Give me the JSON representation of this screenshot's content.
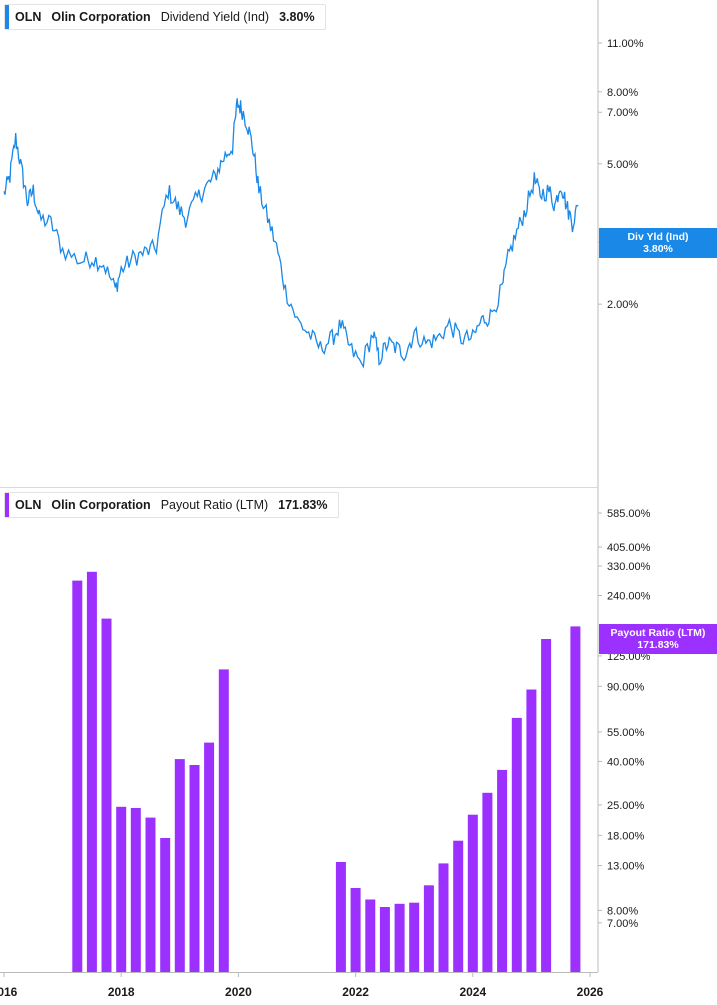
{
  "dividend_panel": {
    "legend": {
      "ticker": "OLN",
      "company": "Olin Corporation",
      "metric": "Dividend Yield (Ind)",
      "value": "3.80%"
    },
    "tag": {
      "label": "Div Yld (Ind)",
      "value": "3.80%"
    }
  },
  "payout_panel": {
    "legend": {
      "ticker": "OLN",
      "company": "Olin Corporation",
      "metric": "Payout Ratio (LTM)",
      "value": "171.83%"
    },
    "tag": {
      "label": "Payout Ratio (LTM)",
      "value": "171.83%"
    }
  },
  "colors": {
    "yield_line": "#1a88e6",
    "payout_bars": "#9b30ff",
    "axis": "#bbbbbb",
    "text": "#1a1a1a"
  },
  "chart_data": [
    {
      "type": "line",
      "scale": "log",
      "series": [
        {
          "name": "Dividend Yield (Ind)",
          "x": [
            2016.0,
            2016.1,
            2016.2,
            2016.3,
            2016.4,
            2016.5,
            2016.6,
            2016.8,
            2017.0,
            2017.3,
            2017.5,
            2017.7,
            2017.9,
            2018.0,
            2018.2,
            2018.4,
            2018.6,
            2018.8,
            2018.95,
            2019.1,
            2019.3,
            2019.45,
            2019.6,
            2019.75,
            2019.9,
            2019.98,
            2020.05,
            2020.15,
            2020.25,
            2020.35,
            2020.5,
            2020.65,
            2020.8,
            2021.0,
            2021.2,
            2021.4,
            2021.6,
            2021.75,
            2021.9,
            2022.1,
            2022.3,
            2022.4,
            2022.55,
            2022.7,
            2022.85,
            2023.0,
            2023.2,
            2023.4,
            2023.6,
            2023.8,
            2024.0,
            2024.15,
            2024.3,
            2024.5,
            2024.6,
            2024.75,
            2024.9,
            2025.05,
            2025.15,
            2025.3,
            2025.4,
            2025.5,
            2025.6,
            2025.7,
            2025.8
          ],
          "y": [
            4.1,
            4.6,
            5.9,
            4.8,
            3.9,
            4.2,
            3.5,
            3.4,
            2.85,
            2.65,
            2.7,
            2.6,
            2.2,
            2.5,
            2.7,
            2.8,
            2.9,
            4.2,
            3.8,
            3.5,
            4.0,
            4.3,
            4.6,
            5.2,
            5.6,
            7.4,
            7.2,
            6.5,
            5.5,
            4.2,
            3.5,
            2.9,
            2.2,
            1.8,
            1.65,
            1.5,
            1.6,
            1.75,
            1.5,
            1.35,
            1.65,
            1.4,
            1.55,
            1.5,
            1.45,
            1.65,
            1.55,
            1.6,
            1.75,
            1.6,
            1.6,
            1.8,
            1.85,
            2.2,
            2.7,
            3.2,
            3.7,
            4.5,
            4.1,
            4.2,
            3.8,
            4.4,
            3.8,
            3.4,
            3.8
          ]
        }
      ],
      "y_ticks": [
        "11.00%",
        "8.00%",
        "7.00%",
        "5.00%",
        "3.00%",
        "2.00%"
      ],
      "ylim": [
        1.2,
        13
      ]
    },
    {
      "type": "bar",
      "scale": "log",
      "series": [
        {
          "name": "Payout Ratio (LTM)",
          "x": [
            2017.25,
            2017.5,
            2017.75,
            2018.0,
            2018.25,
            2018.5,
            2018.75,
            2019.0,
            2019.25,
            2019.5,
            2019.75,
            2021.75,
            2022.0,
            2022.25,
            2022.5,
            2022.75,
            2023.0,
            2023.25,
            2023.5,
            2023.75,
            2024.0,
            2024.25,
            2024.5,
            2024.75,
            2025.0,
            2025.25,
            2025.75
          ],
          "values": [
            282,
            310,
            187,
            24.5,
            24.2,
            21.8,
            17.5,
            41,
            38.5,
            49,
            108,
            13.5,
            10.2,
            9,
            8.3,
            8.6,
            8.7,
            10.5,
            13.3,
            17,
            22.5,
            28.5,
            36.5,
            64,
            87,
            150,
            171.83
          ]
        }
      ],
      "y_ticks": [
        "585.00%",
        "405.00%",
        "330.00%",
        "240.00%",
        "125.00%",
        "90.00%",
        "55.00%",
        "40.00%",
        "25.00%",
        "18.00%",
        "13.00%",
        "8.00%",
        "7.00%"
      ],
      "ylim": [
        6.4,
        700
      ]
    }
  ],
  "x_axis": {
    "labels": [
      "2016",
      "2018",
      "2020",
      "2022",
      "2024",
      "2026"
    ]
  }
}
